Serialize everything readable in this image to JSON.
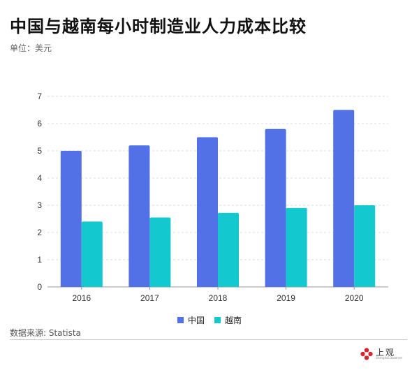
{
  "header": {
    "title": "中国与越南每小时制造业人力成本比较",
    "unit": "单位：美元"
  },
  "source": "数据来源: Statista",
  "logo": {
    "text_cn": "上观",
    "text_en": "Shanghai Observer",
    "mark_icon": "red-flower-logo-icon"
  },
  "colors": {
    "china": "#5271e7",
    "vietnam": "#14c8cf",
    "grid": "#dddddd",
    "axis": "#999999"
  },
  "chart_data": {
    "type": "bar",
    "categories": [
      "2016",
      "2017",
      "2018",
      "2019",
      "2020"
    ],
    "series": [
      {
        "name": "中国",
        "values": [
          5.0,
          5.2,
          5.5,
          5.8,
          6.5
        ]
      },
      {
        "name": "越南",
        "values": [
          2.4,
          2.55,
          2.72,
          2.9,
          3.0
        ]
      }
    ],
    "yticks": [
      "0",
      "1",
      "2",
      "3",
      "4",
      "5",
      "6",
      "7"
    ],
    "ylim": [
      0,
      7
    ],
    "grid": true,
    "legend": "bottom-center"
  }
}
